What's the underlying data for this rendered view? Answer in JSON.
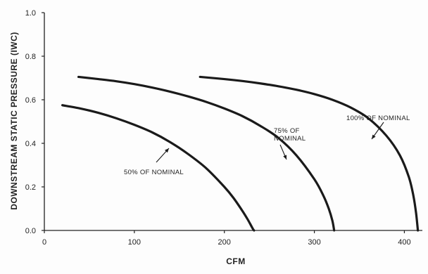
{
  "chart_data": {
    "type": "line",
    "title": "",
    "xlabel": "CFM",
    "ylabel": "DOWNSTREAM STATIC PRESSURE (IWC)",
    "xlim": [
      0,
      420
    ],
    "ylim": [
      0,
      1.0
    ],
    "xticks": [
      "0",
      "100",
      "200",
      "300",
      "400"
    ],
    "yticks": [
      "0.0",
      "0.2",
      "0.4",
      "0.6",
      "0.8",
      "1.0"
    ],
    "grid": false,
    "legend": "none",
    "series": [
      {
        "name": "50% OF NOMINAL",
        "x": [
          20,
          40,
          60,
          80,
          100,
          120,
          140,
          160,
          180,
          200,
          210,
          220,
          226,
          230,
          232,
          233
        ],
        "y": [
          0.575,
          0.56,
          0.54,
          0.515,
          0.485,
          0.45,
          0.405,
          0.35,
          0.285,
          0.2,
          0.15,
          0.09,
          0.05,
          0.02,
          0.005,
          0.0
        ]
      },
      {
        "name": "75% OF NOMINAL",
        "x": [
          38,
          60,
          80,
          100,
          120,
          140,
          160,
          180,
          200,
          220,
          240,
          260,
          280,
          300,
          310,
          316,
          320,
          322
        ],
        "y": [
          0.705,
          0.695,
          0.685,
          0.672,
          0.656,
          0.637,
          0.615,
          0.59,
          0.56,
          0.525,
          0.48,
          0.425,
          0.345,
          0.235,
          0.16,
          0.1,
          0.045,
          0.0
        ]
      },
      {
        "name": "100% OF NOMINAL",
        "x": [
          173,
          200,
          220,
          240,
          260,
          280,
          300,
          320,
          340,
          360,
          380,
          395,
          405,
          410,
          413,
          415
        ],
        "y": [
          0.705,
          0.695,
          0.686,
          0.675,
          0.662,
          0.646,
          0.626,
          0.6,
          0.565,
          0.515,
          0.435,
          0.345,
          0.245,
          0.16,
          0.08,
          0.0
        ]
      }
    ],
    "annotations": [
      {
        "lines": [
          "50% OF NOMINAL"
        ],
        "series_index": 0
      },
      {
        "lines": [
          "75% OF",
          "NOMINAL"
        ],
        "series_index": 1
      },
      {
        "lines": [
          "100% OF NOMINAL"
        ],
        "series_index": 2
      }
    ],
    "colors": {
      "line": "#1a1a1a",
      "axis": "#222222",
      "text": "#222222"
    }
  }
}
